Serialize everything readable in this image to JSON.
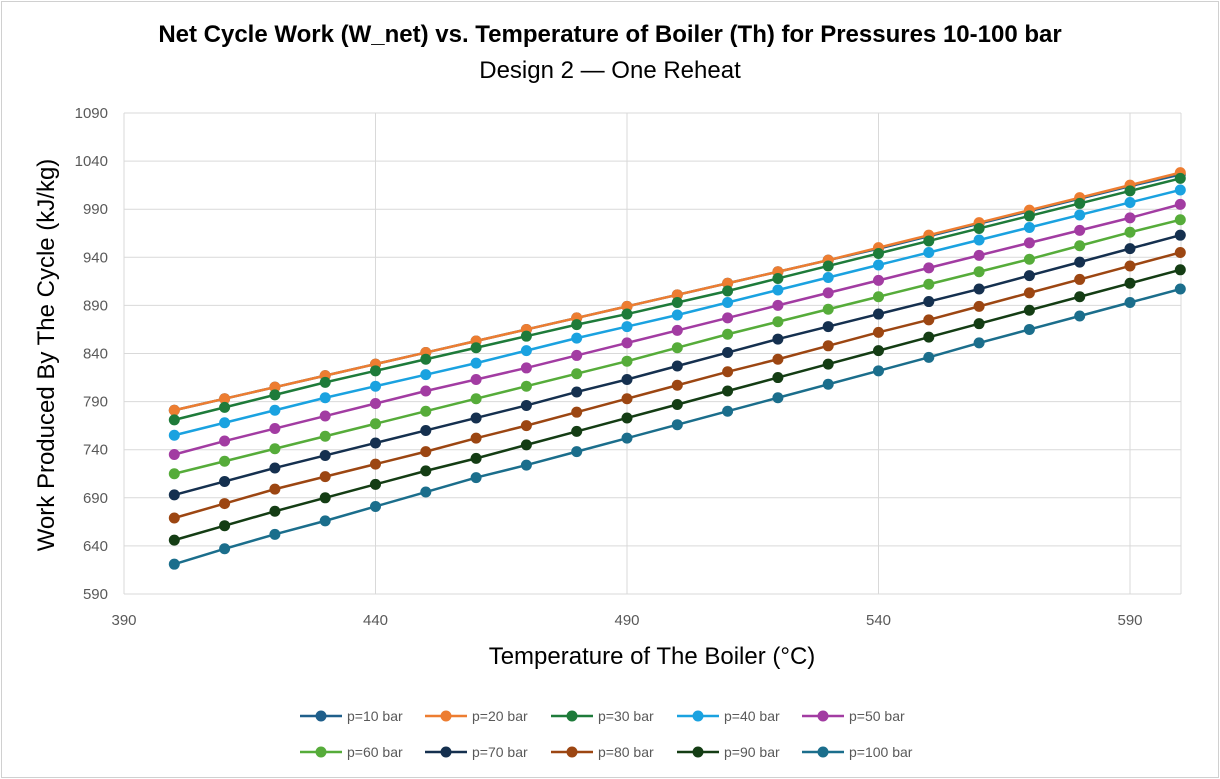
{
  "chart_data": {
    "type": "line",
    "title": "Net Cycle Work (W_net) vs. Temperature of Boiler (Th) for Pressures 10-100 bar",
    "subtitle": "Design 2 — One Reheat",
    "xlabel": "Temperature of The Boiler (°C)",
    "ylabel": "Work Produced By The Cycle (kJ/kg)",
    "xlim": [
      390,
      600
    ],
    "ylim": [
      590,
      1090
    ],
    "xticks": [
      390,
      440,
      490,
      540,
      590
    ],
    "yticks": [
      590,
      640,
      690,
      740,
      790,
      840,
      890,
      940,
      990,
      1040,
      1090
    ],
    "grid": true,
    "legend_position": "bottom",
    "x": [
      400,
      410,
      420,
      430,
      440,
      450,
      460,
      470,
      480,
      490,
      500,
      510,
      520,
      530,
      540,
      550,
      560,
      570,
      580,
      590,
      600
    ],
    "series": [
      {
        "name": "p=10 bar",
        "color": "#1f5f8b",
        "values": [
          781,
          793,
          805,
          817,
          829,
          841,
          853,
          865,
          877,
          889,
          901,
          913,
          925,
          937,
          949,
          962,
          975,
          988,
          1001,
          1014,
          1026
        ]
      },
      {
        "name": "p=20 bar",
        "color": "#ed7d31",
        "values": [
          781,
          793,
          805,
          817,
          829,
          841,
          853,
          865,
          877,
          889,
          901,
          913,
          925,
          937,
          950,
          963,
          976,
          989,
          1002,
          1015,
          1028
        ]
      },
      {
        "name": "p=30 bar",
        "color": "#1e7b3a",
        "values": [
          771,
          784,
          797,
          810,
          822,
          834,
          846,
          858,
          870,
          881,
          893,
          905,
          918,
          931,
          944,
          957,
          970,
          983,
          996,
          1009,
          1022
        ]
      },
      {
        "name": "p=40 bar",
        "color": "#1aa2e0",
        "values": [
          755,
          768,
          781,
          794,
          806,
          818,
          830,
          843,
          856,
          868,
          880,
          893,
          906,
          919,
          932,
          945,
          958,
          971,
          984,
          997,
          1010
        ]
      },
      {
        "name": "p=50 bar",
        "color": "#a23ca2",
        "values": [
          735,
          749,
          762,
          775,
          788,
          801,
          813,
          825,
          838,
          851,
          864,
          877,
          890,
          903,
          916,
          929,
          942,
          955,
          968,
          981,
          995
        ]
      },
      {
        "name": "p=60 bar",
        "color": "#56ac3a",
        "values": [
          715,
          728,
          741,
          754,
          767,
          780,
          793,
          806,
          819,
          832,
          846,
          860,
          873,
          886,
          899,
          912,
          925,
          938,
          952,
          966,
          979
        ]
      },
      {
        "name": "p=70 bar",
        "color": "#15304f",
        "values": [
          693,
          707,
          721,
          734,
          747,
          760,
          773,
          786,
          800,
          813,
          827,
          841,
          855,
          868,
          881,
          894,
          907,
          921,
          935,
          949,
          963
        ]
      },
      {
        "name": "p=80 bar",
        "color": "#9c4612",
        "values": [
          669,
          684,
          699,
          712,
          725,
          738,
          752,
          765,
          779,
          793,
          807,
          821,
          834,
          848,
          862,
          875,
          889,
          903,
          917,
          931,
          945
        ]
      },
      {
        "name": "p=90 bar",
        "color": "#143d14",
        "values": [
          646,
          661,
          676,
          690,
          704,
          718,
          731,
          745,
          759,
          773,
          787,
          801,
          815,
          829,
          843,
          857,
          871,
          885,
          899,
          913,
          927
        ]
      },
      {
        "name": "p=100 bar",
        "color": "#1b6e8c",
        "values": [
          621,
          637,
          652,
          666,
          681,
          696,
          711,
          724,
          738,
          752,
          766,
          780,
          794,
          808,
          822,
          836,
          851,
          865,
          879,
          893,
          907
        ]
      }
    ]
  }
}
